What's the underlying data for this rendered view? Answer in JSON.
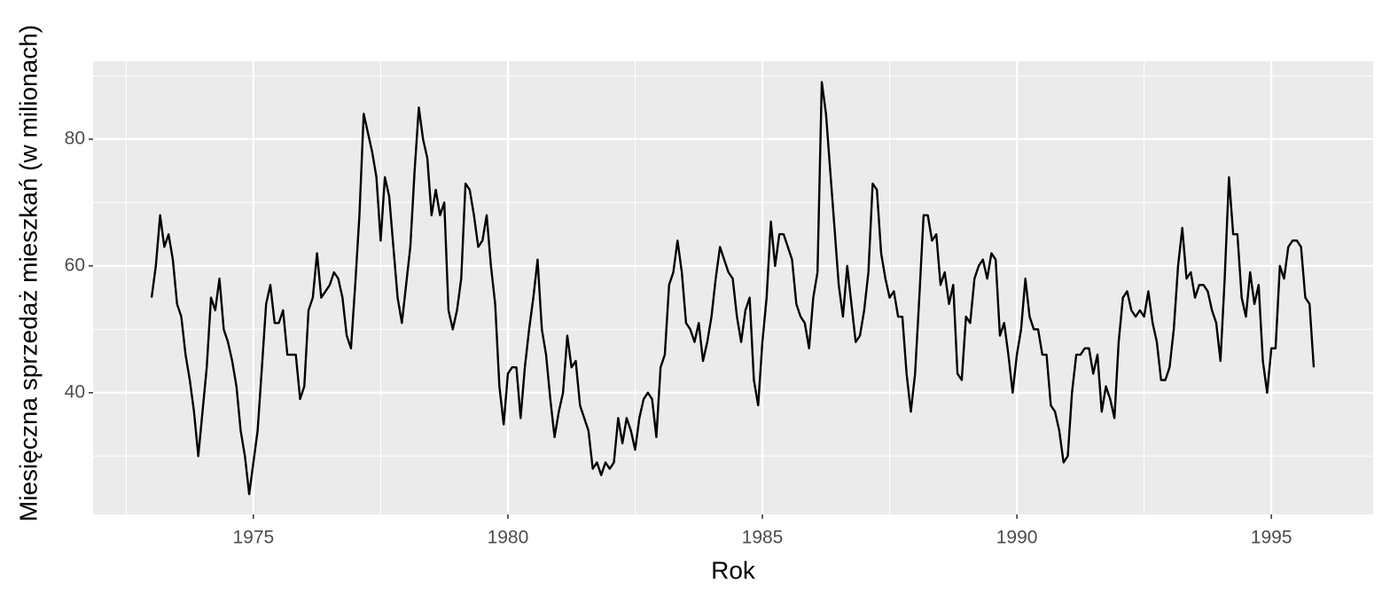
{
  "chart_data": {
    "type": "line",
    "x_label": "Rok",
    "y_label": "Miesięczna sprzedaż mieszkań (w milionach)",
    "color": "#000000",
    "grid": true,
    "xlim": [
      1971.85,
      1997.0
    ],
    "ylim": [
      20.8,
      92.3
    ],
    "xticks": [
      1975,
      1980,
      1985,
      1990,
      1995
    ],
    "yticks": [
      40,
      60,
      80
    ],
    "x": [
      1973.0,
      1973.083,
      1973.167,
      1973.25,
      1973.333,
      1973.417,
      1973.5,
      1973.583,
      1973.667,
      1973.75,
      1973.833,
      1973.917,
      1974.0,
      1974.083,
      1974.167,
      1974.25,
      1974.333,
      1974.417,
      1974.5,
      1974.583,
      1974.667,
      1974.75,
      1974.833,
      1974.917,
      1975.0,
      1975.083,
      1975.167,
      1975.25,
      1975.333,
      1975.417,
      1975.5,
      1975.583,
      1975.667,
      1975.75,
      1975.833,
      1975.917,
      1976.0,
      1976.083,
      1976.167,
      1976.25,
      1976.333,
      1976.417,
      1976.5,
      1976.583,
      1976.667,
      1976.75,
      1976.833,
      1976.917,
      1977.0,
      1977.083,
      1977.167,
      1977.25,
      1977.333,
      1977.417,
      1977.5,
      1977.583,
      1977.667,
      1977.75,
      1977.833,
      1977.917,
      1978.0,
      1978.083,
      1978.167,
      1978.25,
      1978.333,
      1978.417,
      1978.5,
      1978.583,
      1978.667,
      1978.75,
      1978.833,
      1978.917,
      1979.0,
      1979.083,
      1979.167,
      1979.25,
      1979.333,
      1979.417,
      1979.5,
      1979.583,
      1979.667,
      1979.75,
      1979.833,
      1979.917,
      1980.0,
      1980.083,
      1980.167,
      1980.25,
      1980.333,
      1980.417,
      1980.5,
      1980.583,
      1980.667,
      1980.75,
      1980.833,
      1980.917,
      1981.0,
      1981.083,
      1981.167,
      1981.25,
      1981.333,
      1981.417,
      1981.5,
      1981.583,
      1981.667,
      1981.75,
      1981.833,
      1981.917,
      1982.0,
      1982.083,
      1982.167,
      1982.25,
      1982.333,
      1982.417,
      1982.5,
      1982.583,
      1982.667,
      1982.75,
      1982.833,
      1982.917,
      1983.0,
      1983.083,
      1983.167,
      1983.25,
      1983.333,
      1983.417,
      1983.5,
      1983.583,
      1983.667,
      1983.75,
      1983.833,
      1983.917,
      1984.0,
      1984.083,
      1984.167,
      1984.25,
      1984.333,
      1984.417,
      1984.5,
      1984.583,
      1984.667,
      1984.75,
      1984.833,
      1984.917,
      1985.0,
      1985.083,
      1985.167,
      1985.25,
      1985.333,
      1985.417,
      1985.5,
      1985.583,
      1985.667,
      1985.75,
      1985.833,
      1985.917,
      1986.0,
      1986.083,
      1986.167,
      1986.25,
      1986.333,
      1986.417,
      1986.5,
      1986.583,
      1986.667,
      1986.75,
      1986.833,
      1986.917,
      1987.0,
      1987.083,
      1987.167,
      1987.25,
      1987.333,
      1987.417,
      1987.5,
      1987.583,
      1987.667,
      1987.75,
      1987.833,
      1987.917,
      1988.0,
      1988.083,
      1988.167,
      1988.25,
      1988.333,
      1988.417,
      1988.5,
      1988.583,
      1988.667,
      1988.75,
      1988.833,
      1988.917,
      1989.0,
      1989.083,
      1989.167,
      1989.25,
      1989.333,
      1989.417,
      1989.5,
      1989.583,
      1989.667,
      1989.75,
      1989.833,
      1989.917,
      1990.0,
      1990.083,
      1990.167,
      1990.25,
      1990.333,
      1990.417,
      1990.5,
      1990.583,
      1990.667,
      1990.75,
      1990.833,
      1990.917,
      1991.0,
      1991.083,
      1991.167,
      1991.25,
      1991.333,
      1991.417,
      1991.5,
      1991.583,
      1991.667,
      1991.75,
      1991.833,
      1991.917,
      1992.0,
      1992.083,
      1992.167,
      1992.25,
      1992.333,
      1992.417,
      1992.5,
      1992.583,
      1992.667,
      1992.75,
      1992.833,
      1992.917,
      1993.0,
      1993.083,
      1993.167,
      1993.25,
      1993.333,
      1993.417,
      1993.5,
      1993.583,
      1993.667,
      1993.75,
      1993.833,
      1993.917,
      1994.0,
      1994.083,
      1994.167,
      1994.25,
      1994.333,
      1994.417,
      1994.5,
      1994.583,
      1994.667,
      1994.75,
      1994.833,
      1994.917,
      1995.0,
      1995.083,
      1995.167,
      1995.25,
      1995.333,
      1995.417,
      1995.5,
      1995.583,
      1995.667,
      1995.75,
      1995.833
    ],
    "values": [
      55,
      60,
      68,
      63,
      65,
      61,
      54,
      52,
      46,
      42,
      37,
      30,
      37,
      44,
      55,
      53,
      58,
      50,
      48,
      45,
      41,
      34,
      30,
      24,
      29,
      34,
      44,
      54,
      57,
      51,
      51,
      53,
      46,
      46,
      46,
      39,
      41,
      53,
      55,
      62,
      55,
      56,
      57,
      59,
      58,
      55,
      49,
      47,
      57,
      68,
      84,
      81,
      78,
      74,
      64,
      74,
      71,
      63,
      55,
      51,
      57,
      63,
      75,
      85,
      80,
      77,
      68,
      72,
      68,
      70,
      53,
      50,
      53,
      58,
      73,
      72,
      68,
      63,
      64,
      68,
      60,
      54,
      41,
      35,
      43,
      44,
      44,
      36,
      44,
      50,
      55,
      61,
      50,
      46,
      39,
      33,
      37,
      40,
      49,
      44,
      45,
      38,
      36,
      34,
      28,
      29,
      27,
      29,
      28,
      29,
      36,
      32,
      36,
      34,
      31,
      36,
      39,
      40,
      39,
      33,
      44,
      46,
      57,
      59,
      64,
      59,
      51,
      50,
      48,
      51,
      45,
      48,
      52,
      58,
      63,
      61,
      59,
      58,
      52,
      48,
      53,
      55,
      42,
      38,
      48,
      55,
      67,
      60,
      65,
      65,
      63,
      61,
      54,
      52,
      51,
      47,
      55,
      59,
      89,
      84,
      75,
      66,
      57,
      52,
      60,
      54,
      48,
      49,
      53,
      59,
      73,
      72,
      62,
      58,
      55,
      56,
      52,
      52,
      43,
      37,
      43,
      55,
      68,
      68,
      64,
      65,
      57,
      59,
      54,
      57,
      43,
      42,
      52,
      51,
      58,
      60,
      61,
      58,
      62,
      61,
      49,
      51,
      46,
      40,
      46,
      50,
      58,
      52,
      50,
      50,
      46,
      46,
      38,
      37,
      34,
      29,
      30,
      40,
      46,
      46,
      47,
      47,
      43,
      46,
      37,
      41,
      39,
      36,
      48,
      55,
      56,
      53,
      52,
      53,
      52,
      56,
      51,
      48,
      42,
      42,
      44,
      50,
      60,
      66,
      58,
      59,
      55,
      57,
      57,
      56,
      53,
      51,
      45,
      58,
      74,
      65,
      65,
      55,
      52,
      59,
      54,
      57,
      45,
      40,
      47,
      47,
      60,
      58,
      63,
      64,
      64,
      63,
      55,
      54,
      44
    ]
  }
}
